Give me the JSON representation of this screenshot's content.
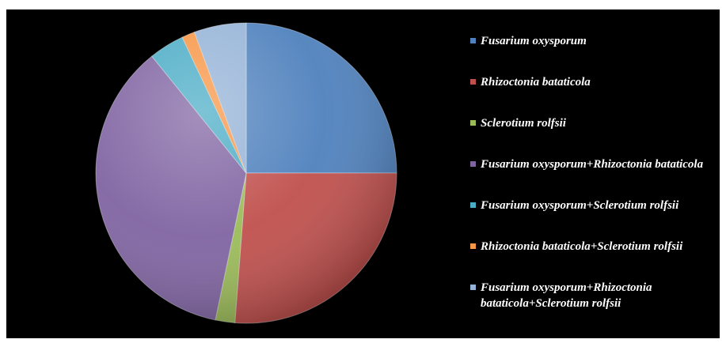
{
  "chart_data": {
    "type": "pie",
    "title": "",
    "start_angle_deg": 0,
    "direction": "clockwise",
    "slices": [
      {
        "label": "Fusarium oxysporum",
        "value": 25.0,
        "color": "#4f81bd"
      },
      {
        "label": "Rhizoctonia bataticola",
        "value": 26.2,
        "color": "#c0504d"
      },
      {
        "label": "Sclerotium rolfsii",
        "value": 2.1,
        "color": "#9bbb59"
      },
      {
        "label": "Fusarium oxysporum+Rhizoctonia bataticola",
        "value": 35.9,
        "color": "#8064a2"
      },
      {
        "label": "Fusarium oxysporum+Sclerotium rolfsii",
        "value": 3.8,
        "color": "#4bacc6"
      },
      {
        "label": "Rhizoctonia bataticola+Sclerotium rolfsii",
        "value": 1.4,
        "color": "#f79646"
      },
      {
        "label": "Fusarium oxysporum+Rhizoctonia bataticola+Sclerotium rolfsii",
        "value": 5.6,
        "color": "#95b3d7"
      }
    ],
    "legend": {
      "placement": "right"
    }
  }
}
